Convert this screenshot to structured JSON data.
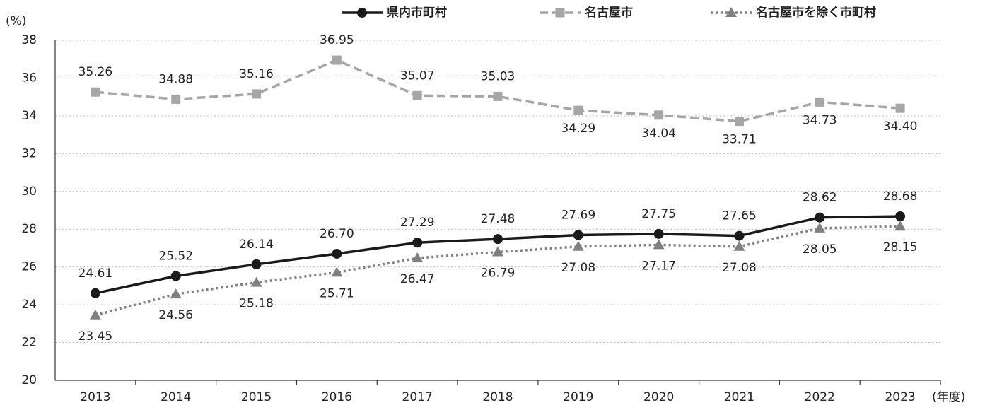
{
  "chart_data": {
    "type": "line",
    "y_label": "(%)",
    "x_label": "(年度)",
    "categories": [
      "2013",
      "2014",
      "2015",
      "2016",
      "2017",
      "2018",
      "2019",
      "2020",
      "2021",
      "2022",
      "2023"
    ],
    "series": [
      {
        "name": "県内市町村",
        "color": "#1a1a1a",
        "style": "solid",
        "marker": "circle",
        "values": [
          24.61,
          25.52,
          26.14,
          26.7,
          27.29,
          27.48,
          27.69,
          27.75,
          27.65,
          28.62,
          28.68
        ],
        "value_labels": [
          "24.61",
          "25.52",
          "26.14",
          "26.70",
          "27.29",
          "27.48",
          "27.69",
          "27.75",
          "27.65",
          "28.62",
          "28.68"
        ]
      },
      {
        "name": "名古屋市",
        "color": "#a6a6a6",
        "style": "dashed",
        "marker": "square",
        "values": [
          35.26,
          34.88,
          35.16,
          36.95,
          35.07,
          35.03,
          34.29,
          34.04,
          33.71,
          34.73,
          34.4
        ],
        "value_labels": [
          "35.26",
          "34.88",
          "35.16",
          "36.95",
          "35.07",
          "35.03",
          "34.29",
          "34.04",
          "33.71",
          "34.73",
          "34.40"
        ]
      },
      {
        "name": "名古屋市を除く市町村",
        "color": "#808080",
        "style": "dotted",
        "marker": "triangle",
        "values": [
          23.45,
          24.56,
          25.18,
          25.71,
          26.47,
          26.79,
          27.08,
          27.17,
          27.08,
          28.05,
          28.15
        ],
        "value_labels": [
          "23.45",
          "24.56",
          "25.18",
          "25.71",
          "26.47",
          "26.79",
          "27.08",
          "27.17",
          "27.08",
          "28.05",
          "28.15"
        ]
      }
    ],
    "ylim": [
      20,
      38
    ],
    "yticks": [
      20,
      22,
      24,
      26,
      28,
      30,
      32,
      34,
      36,
      38
    ],
    "grid": true,
    "legend": "top"
  }
}
